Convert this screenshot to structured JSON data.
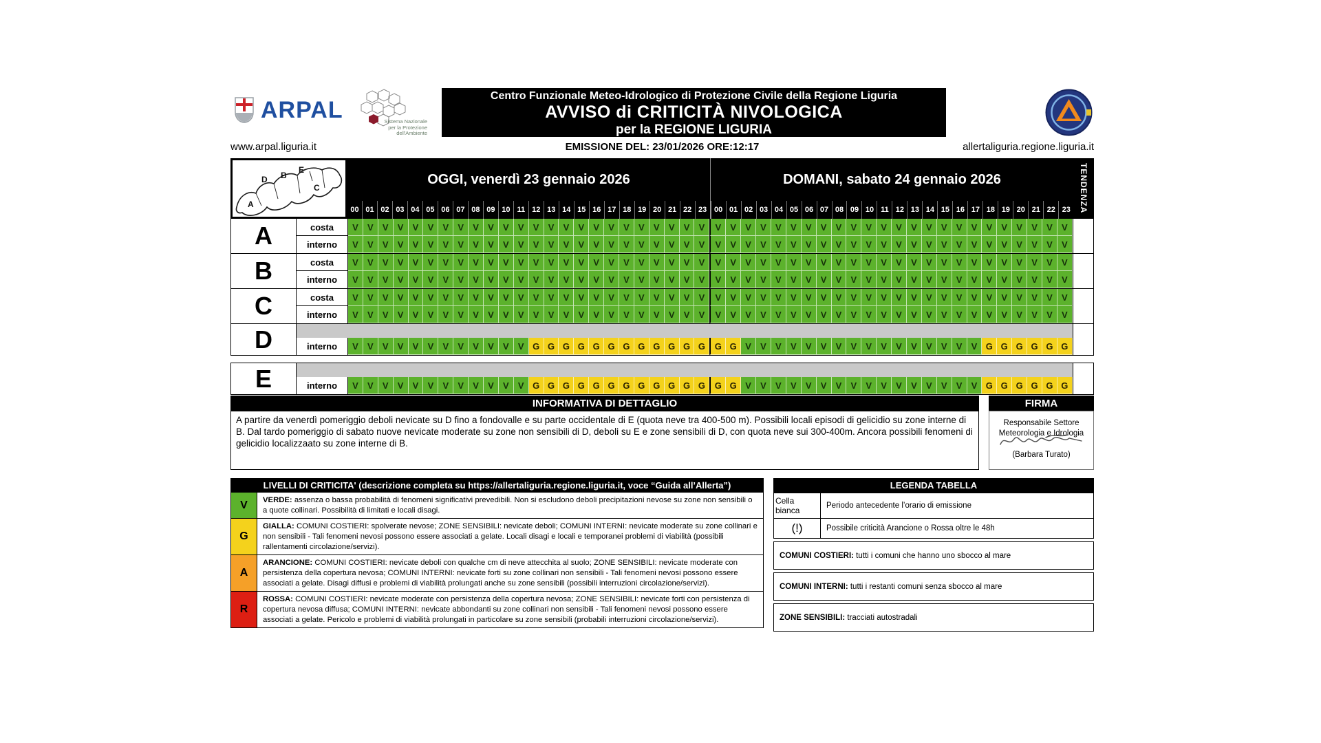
{
  "header": {
    "arpal_word": "ARPAL",
    "snpa_lines": [
      "Sistema Nazionale",
      "per la Protezione",
      "dell'Ambiente"
    ],
    "title_top": "Centro Funzionale Meteo-Idrologico di Protezione Civile della Regione Liguria",
    "title_main": "AVVISO di CRITICITÀ NIVOLOGICA",
    "title_sub": "per la REGIONE LIGURIA",
    "left_url": "www.arpal.liguria.it",
    "emission": "EMISSIONE DEL: 23/01/2026 ORE:12:17",
    "right_url": "allertaliguria.regione.liguria.it"
  },
  "colors": {
    "verde": "#5CB22C",
    "gialla": "#F4D21C",
    "arancione": "#F5A028",
    "rossa": "#DD1F13",
    "grigio": "#C9C9C9"
  },
  "table": {
    "day1_label": "OGGI, venerdì 23 gennaio 2026",
    "day2_label": "DOMANI, sabato 24 gennaio 2026",
    "tendenza": "TENDENZA",
    "hours": [
      "00",
      "01",
      "02",
      "03",
      "04",
      "05",
      "06",
      "07",
      "08",
      "09",
      "10",
      "11",
      "12",
      "13",
      "14",
      "15",
      "16",
      "17",
      "18",
      "19",
      "20",
      "21",
      "22",
      "23"
    ],
    "map_zones": [
      "A",
      "B",
      "C",
      "D",
      "E"
    ],
    "zones": [
      {
        "letter": "A",
        "rows": [
          {
            "label": "costa",
            "cells": "VVVVVVVVVVVVVVVVVVVVVVVVVVVVVVVVVVVVVVVVVVVVVVVV"
          },
          {
            "label": "interno",
            "cells": "VVVVVVVVVVVVVVVVVVVVVVVVVVVVVVVVVVVVVVVVVVVVVVVV"
          }
        ]
      },
      {
        "letter": "B",
        "rows": [
          {
            "label": "costa",
            "cells": "VVVVVVVVVVVVVVVVVVVVVVVVVVVVVVVVVVVVVVVVVVVVVVVV"
          },
          {
            "label": "interno",
            "cells": "VVVVVVVVVVVVVVVVVVVVVVVVVVVVVVVVVVVVVVVVVVVVVVVV"
          }
        ]
      },
      {
        "letter": "C",
        "rows": [
          {
            "label": "costa",
            "cells": "VVVVVVVVVVVVVVVVVVVVVVVVVVVVVVVVVVVVVVVVVVVVVVVV"
          },
          {
            "label": "interno",
            "cells": "VVVVVVVVVVVVVVVVVVVVVVVVVVVVVVVVVVVVVVVVVVVVVVVV"
          }
        ]
      },
      {
        "letter": "D",
        "rows": [
          {
            "label": "",
            "gray": true,
            "cells": ""
          },
          {
            "label": "interno",
            "cells": "VVVVVVVVVVVVGGGGGGGGGGGGGGVVVVVVVVVVVVVVVVGGGGGG"
          }
        ]
      },
      {
        "letter": "E",
        "gap_above": true,
        "rows": [
          {
            "label": "",
            "gray": true,
            "cells": ""
          },
          {
            "label": "interno",
            "cells": "VVVVVVVVVVVVGGGGGGGGGGGGGGVVVVVVVVVVVVVVVVGGGGGG"
          }
        ]
      }
    ]
  },
  "informativa": {
    "header": "INFORMATIVA DI DETTAGLIO",
    "firma_header": "FIRMA",
    "body": "A partire da venerdì pomeriggio deboli nevicate su D fino a fondovalle e su parte occidentale di E (quota neve tra 400-500 m). Possibili locali episodi di gelicidio su zone interne di B. Dal tardo pomeriggio di sabato nuove nevicate moderate su zone non sensibili di D, deboli su E e zone sensibili di D, con quota neve sui 300-400m. Ancora possibili fenomeni di gelicidio localizzaato su zone interne di B.",
    "firma_role_line1": "Responsabile Settore",
    "firma_role_line2": "Meteorologia e Idrologia",
    "firma_name": "(Barbara Turato)"
  },
  "livelli": {
    "header": "LIVELLI DI CRITICITA' (descrizione completa su https://allertaliguria.regione.liguria.it, voce “Guida all’Allerta”)",
    "rows": [
      {
        "code": "V",
        "color": "#5CB22C",
        "bold": "VERDE:",
        "text": " assenza o bassa probabilità di fenomeni significativi prevedibili. Non si escludono deboli precipitazioni nevose su zone non sensibili o a quote collinari. Possibilità di limitati e locali disagi."
      },
      {
        "code": "G",
        "color": "#F4D21C",
        "bold": "GIALLA:",
        "text": " COMUNI COSTIERI: spolverate nevose; ZONE SENSIBILI: nevicate deboli; COMUNI INTERNI: nevicate moderate su zone collinari e non sensibili - Tali fenomeni nevosi possono essere associati a gelate. Locali disagi e locali e temporanei problemi di viabilità (possibili rallentamenti circolazione/servizi)."
      },
      {
        "code": "A",
        "color": "#F5A028",
        "bold": "ARANCIONE:",
        "text": " COMUNI COSTIERI: nevicate deboli con qualche cm di neve attecchita al suolo; ZONE SENSIBILI: nevicate moderate con persistenza della copertura nevosa; COMUNI INTERNI: nevicate forti su zone collinari non sensibili - Tali fenomeni nevosi possono essere associati a gelate. Disagi diffusi e problemi di viabilità prolungati anche su zone sensibili (possibili interruzioni circolazione/servizi)."
      },
      {
        "code": "R",
        "color": "#DD1F13",
        "bold": "ROSSA:",
        "text": "  COMUNI COSTIERI: nevicate moderate con persistenza della copertura nevosa; ZONE SENSIBILI: nevicate forti con persistenza di copertura nevosa diffusa; COMUNI INTERNI: nevicate abbondanti su zone collinari non sensibili - Tali fenomeni nevosi possono essere associati a gelate. Pericolo e problemi di viabilità prolungati in particolare su zone sensibili (probabili interruzioni circolazione/servizi)."
      }
    ]
  },
  "legenda": {
    "header": "LEGENDA TABELLA",
    "rows2col": [
      {
        "label": "Cella bianca",
        "text": "Periodo antecedente l’orario di emissione"
      },
      {
        "label": "(!)",
        "text": "Possibile criticità Arancione o Rossa oltre le 48h"
      }
    ],
    "boxes": [
      {
        "bold": "COMUNI COSTIERI:",
        "text": " tutti i comuni che hanno uno sbocco al mare"
      },
      {
        "bold": "COMUNI INTERNI:",
        "text": " tutti i restanti comuni senza sbocco al mare"
      },
      {
        "bold": "ZONE SENSIBILI:",
        "text": " tracciati autostradali"
      }
    ]
  }
}
